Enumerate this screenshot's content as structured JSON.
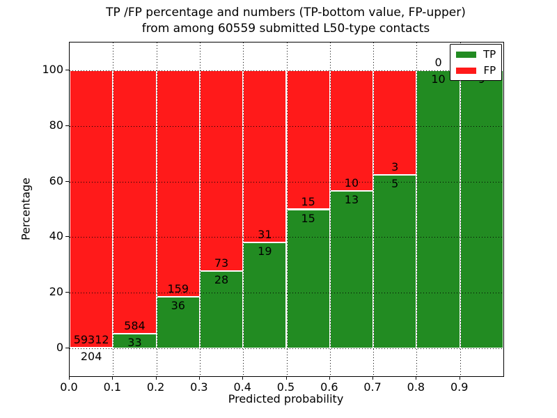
{
  "figure": {
    "title_line1": "TP /FP percentage and numbers (TP-bottom value, FP-upper)",
    "title_line2": "from among 60559 submitted L50-type contacts"
  },
  "chart_data": {
    "type": "bar",
    "stacked": true,
    "title": "TP /FP percentage and numbers (TP-bottom value, FP-upper)\nfrom among 60559 submitted L50-type contacts",
    "xlabel": "Predicted probability",
    "ylabel": "Percentage",
    "xlim": [
      0.0,
      1.0
    ],
    "ylim": [
      -10,
      110
    ],
    "bin_edges": [
      0.0,
      0.1,
      0.2,
      0.3,
      0.4,
      0.5,
      0.6,
      0.7,
      0.8,
      0.9,
      1.0
    ],
    "x_tick_labels": [
      "0.0",
      "0.1",
      "0.2",
      "0.3",
      "0.4",
      "0.5",
      "0.6",
      "0.7",
      "0.8",
      "0.9"
    ],
    "y_tick_values": [
      0,
      20,
      40,
      60,
      80,
      100
    ],
    "y_tick_labels": [
      "0",
      "20",
      "40",
      "60",
      "80",
      "100"
    ],
    "grid": "dotted",
    "bar_edge_color": "#ffffff",
    "series": [
      {
        "name": "TP",
        "color": "#228b22",
        "position": "bottom",
        "counts": [
          204,
          33,
          36,
          28,
          19,
          15,
          13,
          5,
          10,
          9
        ]
      },
      {
        "name": "FP",
        "color": "#ff1a1a",
        "position": "top",
        "counts": [
          59312,
          584,
          159,
          73,
          31,
          15,
          10,
          3,
          0,
          0
        ]
      }
    ],
    "tp_percent_of_bin": [
      0.34,
      5.35,
      18.46,
      27.72,
      38.0,
      50.0,
      56.52,
      62.5,
      100.0,
      100.0
    ],
    "legend": {
      "position": "upper right",
      "entries": [
        {
          "label": "TP",
          "color": "#228b22"
        },
        {
          "label": "FP",
          "color": "#ff1a1a"
        }
      ]
    }
  }
}
